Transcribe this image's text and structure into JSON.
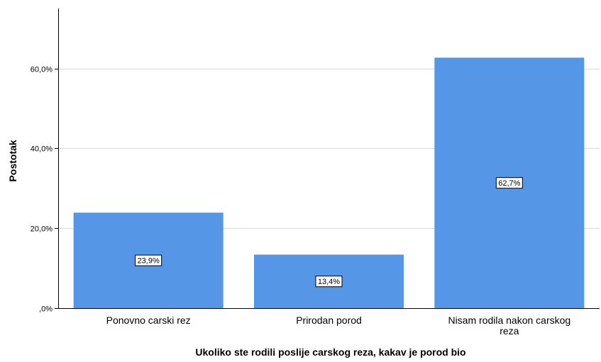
{
  "chart_data": {
    "type": "bar",
    "categories": [
      "Ponovno carski rez",
      "Prirodan porod",
      "Nisam rodila nakon carskog reza"
    ],
    "category_label_lines": [
      [
        "Ponovno carski rez"
      ],
      [
        "Prirodan porod"
      ],
      [
        "Nisam rodila nakon carskog",
        "reza"
      ]
    ],
    "values": [
      23.9,
      13.4,
      62.7
    ],
    "data_labels": [
      "23,9%",
      "13,4%",
      "62,7%"
    ],
    "xlabel": "Ukoliko ste rodili poslije carskog reza, kakav je porod bio",
    "ylabel": "Postotak",
    "ylim": [
      0,
      75
    ],
    "yticks": [
      0,
      20,
      40,
      60
    ],
    "ytick_labels": [
      ",0%",
      "20,0%",
      "40,0%",
      "60,0%"
    ],
    "grid": true,
    "bar_color": "#5596e6"
  }
}
